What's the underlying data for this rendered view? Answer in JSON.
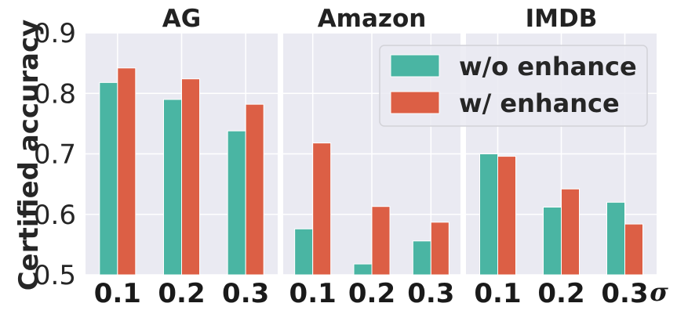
{
  "chart_data": {
    "type": "bar",
    "ylabel": "Certified accuracy",
    "xlabel": "σ",
    "ylim": [
      0.5,
      0.9
    ],
    "yticks": [
      "0.5",
      "0.6",
      "0.7",
      "0.8",
      "0.9"
    ],
    "grid": true,
    "legend_position": "top-right",
    "legend": [
      "w/o enhance",
      "w/ enhance"
    ],
    "colors": {
      "w/o enhance": "#4ab5a3",
      "w/ enhance": "#dc5f45",
      "background": "#eaeaf2"
    },
    "panels": [
      {
        "title": "AG",
        "categories": [
          "0.1",
          "0.2",
          "0.3"
        ],
        "series": [
          {
            "name": "w/o enhance",
            "values": [
              0.818,
              0.79,
              0.738
            ]
          },
          {
            "name": "w/ enhance",
            "values": [
              0.842,
              0.824,
              0.782
            ]
          }
        ]
      },
      {
        "title": "Amazon",
        "categories": [
          "0.1",
          "0.2",
          "0.3"
        ],
        "series": [
          {
            "name": "w/o enhance",
            "values": [
              0.576,
              0.518,
              0.556
            ]
          },
          {
            "name": "w/ enhance",
            "values": [
              0.718,
              0.613,
              0.587
            ]
          }
        ]
      },
      {
        "title": "IMDB",
        "categories": [
          "0.1",
          "0.2",
          "0.3"
        ],
        "series": [
          {
            "name": "w/o enhance",
            "values": [
              0.7,
              0.612,
              0.62
            ]
          },
          {
            "name": "w/ enhance",
            "values": [
              0.696,
              0.642,
              0.584
            ]
          }
        ]
      }
    ]
  }
}
